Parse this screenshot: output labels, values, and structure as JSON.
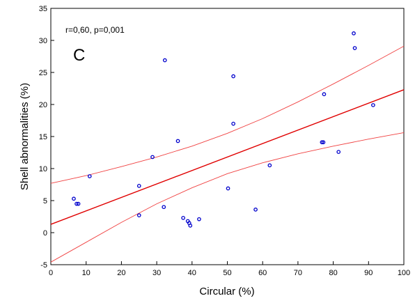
{
  "chart_data": {
    "type": "scatter",
    "title": "",
    "xlabel": "Circular (%)",
    "ylabel": "Shell abnormalities (%)",
    "xlim": [
      0,
      100
    ],
    "ylim": [
      -5,
      35
    ],
    "x_ticks": [
      0,
      10,
      20,
      30,
      40,
      50,
      60,
      70,
      80,
      90,
      100
    ],
    "y_ticks": [
      -5,
      0,
      5,
      10,
      15,
      20,
      25,
      30,
      35
    ],
    "grid": false,
    "legend": "none",
    "annotations": {
      "stats": "r=0,60, p=0,001",
      "panel_letter": "C"
    },
    "points": [
      {
        "x": 6.5,
        "y": 5.3
      },
      {
        "x": 7.3,
        "y": 4.5
      },
      {
        "x": 7.8,
        "y": 4.5
      },
      {
        "x": 11.0,
        "y": 8.8
      },
      {
        "x": 25.0,
        "y": 7.3
      },
      {
        "x": 25.0,
        "y": 2.7
      },
      {
        "x": 28.8,
        "y": 11.8
      },
      {
        "x": 32.0,
        "y": 4.0
      },
      {
        "x": 32.3,
        "y": 26.9
      },
      {
        "x": 36.0,
        "y": 14.3
      },
      {
        "x": 37.5,
        "y": 2.3
      },
      {
        "x": 38.8,
        "y": 1.8
      },
      {
        "x": 39.2,
        "y": 1.5
      },
      {
        "x": 39.5,
        "y": 1.1
      },
      {
        "x": 42.0,
        "y": 2.1
      },
      {
        "x": 50.2,
        "y": 6.9
      },
      {
        "x": 51.7,
        "y": 24.4
      },
      {
        "x": 51.7,
        "y": 17.0
      },
      {
        "x": 58.0,
        "y": 3.6
      },
      {
        "x": 62.0,
        "y": 10.5
      },
      {
        "x": 76.8,
        "y": 14.1
      },
      {
        "x": 77.2,
        "y": 14.1
      },
      {
        "x": 77.4,
        "y": 21.6
      },
      {
        "x": 81.5,
        "y": 12.6
      },
      {
        "x": 85.8,
        "y": 31.1
      },
      {
        "x": 86.1,
        "y": 28.8
      },
      {
        "x": 91.3,
        "y": 19.9
      }
    ],
    "fit_line": {
      "x": [
        0,
        100
      ],
      "y": [
        1.3,
        22.3
      ]
    },
    "conf_upper": {
      "x": [
        0,
        10,
        20,
        30,
        40,
        50,
        60,
        70,
        80,
        90,
        100
      ],
      "y": [
        7.7,
        8.9,
        10.3,
        11.8,
        13.5,
        15.5,
        17.8,
        20.4,
        23.2,
        26.1,
        29.1
      ]
    },
    "conf_lower": {
      "x": [
        0,
        10,
        20,
        30,
        40,
        50,
        60,
        70,
        80,
        90,
        100
      ],
      "y": [
        -4.6,
        -1.5,
        1.6,
        4.5,
        7.0,
        9.2,
        10.9,
        12.3,
        13.5,
        14.6,
        15.6
      ]
    },
    "colors": {
      "points": "#0000cc",
      "fit_line": "#e00000",
      "conf_band": "#f04040",
      "axis": "#000000"
    }
  }
}
